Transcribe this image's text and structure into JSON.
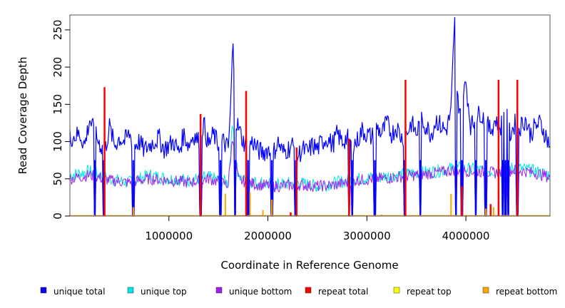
{
  "chart_data": {
    "type": "line",
    "title": "",
    "xlabel": "Coordinate in Reference Genome",
    "ylabel": "Read Coverage Depth",
    "xlim": [
      0,
      4850000
    ],
    "ylim": [
      0,
      270
    ],
    "x_ticks": [
      {
        "value": 1000000,
        "label": "1000000"
      },
      {
        "value": 2000000,
        "label": "2000000"
      },
      {
        "value": 3000000,
        "label": "3000000"
      },
      {
        "value": 4000000,
        "label": "4000000"
      }
    ],
    "y_ticks": [
      {
        "value": 0,
        "label": "0"
      },
      {
        "value": 50,
        "label": "50"
      },
      {
        "value": 100,
        "label": "100"
      },
      {
        "value": 150,
        "label": "150"
      },
      {
        "value": 200,
        "label": "200"
      },
      {
        "value": 250,
        "label": "250"
      }
    ],
    "legend_position": "bottom",
    "series": [
      {
        "name": "unique total",
        "color": "#0000ff",
        "points": [
          [
            0,
            105
          ],
          [
            100000,
            110
          ],
          [
            150000,
            95
          ],
          [
            200000,
            130
          ],
          [
            250000,
            110
          ],
          [
            300000,
            98
          ],
          [
            350000,
            85
          ],
          [
            400000,
            120
          ],
          [
            450000,
            95
          ],
          [
            500000,
            105
          ],
          [
            550000,
            100
          ],
          [
            600000,
            110
          ],
          [
            650000,
            95
          ],
          [
            700000,
            100
          ],
          [
            750000,
            88
          ],
          [
            800000,
            95
          ],
          [
            850000,
            100
          ],
          [
            900000,
            105
          ],
          [
            950000,
            90
          ],
          [
            1000000,
            95
          ],
          [
            1050000,
            100
          ],
          [
            1100000,
            85
          ],
          [
            1150000,
            110
          ],
          [
            1200000,
            95
          ],
          [
            1250000,
            110
          ],
          [
            1300000,
            100
          ],
          [
            1350000,
            125
          ],
          [
            1400000,
            95
          ],
          [
            1450000,
            110
          ],
          [
            1500000,
            95
          ],
          [
            1550000,
            100
          ],
          [
            1600000,
            90
          ],
          [
            1625000,
            150
          ],
          [
            1645000,
            237
          ],
          [
            1670000,
            130
          ],
          [
            1700000,
            120
          ],
          [
            1750000,
            100
          ],
          [
            1800000,
            95
          ],
          [
            1850000,
            100
          ],
          [
            1900000,
            88
          ],
          [
            1950000,
            85
          ],
          [
            2000000,
            90
          ],
          [
            2050000,
            82
          ],
          [
            2100000,
            100
          ],
          [
            2150000,
            85
          ],
          [
            2200000,
            90
          ],
          [
            2250000,
            95
          ],
          [
            2300000,
            80
          ],
          [
            2350000,
            90
          ],
          [
            2400000,
            85
          ],
          [
            2450000,
            95
          ],
          [
            2500000,
            90
          ],
          [
            2550000,
            100
          ],
          [
            2600000,
            105
          ],
          [
            2650000,
            95
          ],
          [
            2700000,
            110
          ],
          [
            2750000,
            100
          ],
          [
            2800000,
            105
          ],
          [
            2850000,
            95
          ],
          [
            2900000,
            100
          ],
          [
            2950000,
            115
          ],
          [
            3000000,
            110
          ],
          [
            3050000,
            105
          ],
          [
            3100000,
            120
          ],
          [
            3150000,
            110
          ],
          [
            3200000,
            125
          ],
          [
            3250000,
            110
          ],
          [
            3300000,
            120
          ],
          [
            3350000,
            105
          ],
          [
            3400000,
            110
          ],
          [
            3450000,
            125
          ],
          [
            3500000,
            110
          ],
          [
            3550000,
            130
          ],
          [
            3600000,
            120
          ],
          [
            3650000,
            110
          ],
          [
            3700000,
            130
          ],
          [
            3750000,
            120
          ],
          [
            3800000,
            115
          ],
          [
            3850000,
            140
          ],
          [
            3870000,
            210
          ],
          [
            3890000,
            265
          ],
          [
            3910000,
            160
          ],
          [
            3950000,
            140
          ],
          [
            4000000,
            180
          ],
          [
            4050000,
            120
          ],
          [
            4100000,
            130
          ],
          [
            4150000,
            140
          ],
          [
            4200000,
            125
          ],
          [
            4250000,
            115
          ],
          [
            4300000,
            130
          ],
          [
            4350000,
            120
          ],
          [
            4400000,
            140
          ],
          [
            4450000,
            110
          ],
          [
            4500000,
            125
          ],
          [
            4550000,
            120
          ],
          [
            4600000,
            130
          ],
          [
            4650000,
            110
          ],
          [
            4700000,
            120
          ],
          [
            4750000,
            125
          ],
          [
            4800000,
            110
          ],
          [
            4850000,
            95
          ]
        ]
      },
      {
        "name": "unique top",
        "color": "#00e5e5",
        "points": [
          [
            0,
            55
          ],
          [
            200000,
            60
          ],
          [
            400000,
            50
          ],
          [
            600000,
            45
          ],
          [
            800000,
            55
          ],
          [
            1000000,
            50
          ],
          [
            1200000,
            48
          ],
          [
            1400000,
            52
          ],
          [
            1600000,
            45
          ],
          [
            1645000,
            130
          ],
          [
            1700000,
            50
          ],
          [
            1900000,
            45
          ],
          [
            2100000,
            42
          ],
          [
            2300000,
            45
          ],
          [
            2500000,
            40
          ],
          [
            2700000,
            45
          ],
          [
            2900000,
            50
          ],
          [
            3100000,
            52
          ],
          [
            3300000,
            55
          ],
          [
            3500000,
            58
          ],
          [
            3700000,
            60
          ],
          [
            3900000,
            65
          ],
          [
            4100000,
            62
          ],
          [
            4300000,
            60
          ],
          [
            4500000,
            65
          ],
          [
            4700000,
            60
          ],
          [
            4850000,
            55
          ]
        ]
      },
      {
        "name": "unique bottom",
        "color": "#a020f0",
        "points": [
          [
            0,
            50
          ],
          [
            200000,
            55
          ],
          [
            400000,
            48
          ],
          [
            600000,
            45
          ],
          [
            800000,
            50
          ],
          [
            1000000,
            48
          ],
          [
            1200000,
            45
          ],
          [
            1400000,
            50
          ],
          [
            1600000,
            42
          ],
          [
            1645000,
            110
          ],
          [
            1700000,
            48
          ],
          [
            1900000,
            42
          ],
          [
            2100000,
            40
          ],
          [
            2300000,
            42
          ],
          [
            2500000,
            40
          ],
          [
            2700000,
            42
          ],
          [
            2900000,
            48
          ],
          [
            3100000,
            50
          ],
          [
            3300000,
            52
          ],
          [
            3500000,
            55
          ],
          [
            3700000,
            58
          ],
          [
            3900000,
            62
          ],
          [
            4100000,
            60
          ],
          [
            4300000,
            58
          ],
          [
            4500000,
            62
          ],
          [
            4700000,
            58
          ],
          [
            4850000,
            52
          ]
        ]
      },
      {
        "name": "repeat total",
        "color": "#ff0000",
        "spikes": [
          [
            350000,
            173
          ],
          [
            1320000,
            137
          ],
          [
            1780000,
            168
          ],
          [
            2230000,
            5
          ],
          [
            2290000,
            92
          ],
          [
            2820000,
            104
          ],
          [
            3390000,
            183
          ],
          [
            3960000,
            40
          ],
          [
            4250000,
            16
          ],
          [
            4330000,
            183
          ],
          [
            4520000,
            183
          ]
        ]
      },
      {
        "name": "repeat top",
        "color": "#ffff00",
        "spikes": []
      },
      {
        "name": "repeat bottom",
        "color": "#ffa500",
        "spikes": [
          [
            640000,
            12
          ],
          [
            1570000,
            30
          ],
          [
            1820000,
            32
          ],
          [
            1950000,
            8
          ],
          [
            2040000,
            22
          ],
          [
            2290000,
            5
          ],
          [
            3150000,
            2
          ],
          [
            3850000,
            30
          ],
          [
            3960000,
            35
          ],
          [
            4200000,
            10
          ],
          [
            4280000,
            12
          ]
        ]
      }
    ],
    "dropouts": [
      250000,
      340000,
      640000,
      1320000,
      1520000,
      1670000,
      1800000,
      2040000,
      2280000,
      2820000,
      2850000,
      3080000,
      3380000,
      3540000,
      3900000,
      3960000,
      4100000,
      4200000,
      4370000,
      4400000,
      4430000,
      4520000
    ]
  },
  "legend": {
    "items": [
      {
        "label": "unique total",
        "color": "#0000ff"
      },
      {
        "label": "unique top",
        "color": "#00e5e5"
      },
      {
        "label": "unique bottom",
        "color": "#a020f0"
      },
      {
        "label": "repeat total",
        "color": "#ff0000"
      },
      {
        "label": "repeat top",
        "color": "#ffff00"
      },
      {
        "label": "repeat bottom",
        "color": "#ffa500"
      }
    ]
  }
}
